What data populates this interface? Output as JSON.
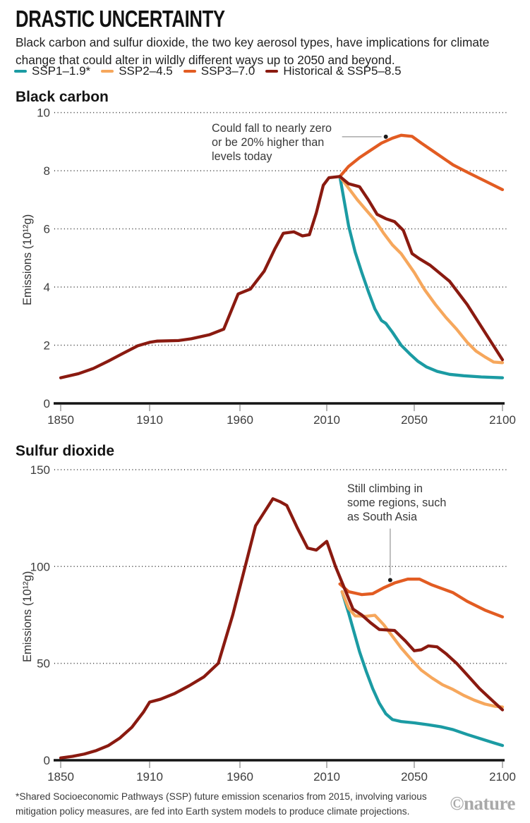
{
  "header": {
    "title": "DRASTIC UNCERTAINTY",
    "subtitle": "Black carbon and sulfur dioxide, the two key aerosol types, have implications for climate change that could alter in wildly different ways up to 2050 and beyond."
  },
  "legend": {
    "items": [
      {
        "label": "SSP1–1.9*",
        "color": "#1B9BA3"
      },
      {
        "label": "SSP2–4.5",
        "color": "#F6A75C"
      },
      {
        "label": "SSP3–7.0",
        "color": "#E25C22"
      },
      {
        "label": "Historical & SSP5–8.5",
        "color": "#8A1A10"
      }
    ]
  },
  "footer": {
    "note": "*Shared Socioeconomic Pathways (SSP) future emission scenarios from 2015, involving various mitigation policy measures, are fed into Earth system models to produce climate projections.",
    "credit": "©nature"
  },
  "chart_data": [
    {
      "type": "line",
      "title": "Black carbon",
      "ylabel": "Emissions (10¹²g)",
      "xlabel": "",
      "xlim": [
        1850,
        2100
      ],
      "ylim": [
        0,
        10
      ],
      "yticks": [
        0,
        2,
        4,
        6,
        8,
        10
      ],
      "xticks": [
        1850,
        1910,
        1960,
        2010,
        2050,
        2100
      ],
      "grid": "dotted-horizontal",
      "legend_position": "top-shared",
      "annotation": {
        "text": "Could fall to nearly zero or be 20% higher than levels today",
        "target_year": 2037,
        "target_value": 9.17
      },
      "series": [
        {
          "name": "SSP1–1.9*",
          "color": "#1B9BA3",
          "points": [
            [
              2016,
              7.8
            ],
            [
              2020,
              6.1
            ],
            [
              2023,
              5.2
            ],
            [
              2026,
              4.5
            ],
            [
              2029,
              3.85
            ],
            [
              2032,
              3.25
            ],
            [
              2035,
              2.85
            ],
            [
              2037,
              2.75
            ],
            [
              2040,
              2.45
            ],
            [
              2044,
              2.0
            ],
            [
              2048,
              1.7
            ],
            [
              2052,
              1.45
            ],
            [
              2057,
              1.25
            ],
            [
              2063,
              1.1
            ],
            [
              2070,
              1.0
            ],
            [
              2078,
              0.95
            ],
            [
              2088,
              0.91
            ],
            [
              2100,
              0.88
            ]
          ]
        },
        {
          "name": "SSP2–4.5",
          "color": "#F6A75C",
          "points": [
            [
              2016,
              7.8
            ],
            [
              2020,
              7.4
            ],
            [
              2024,
              7.0
            ],
            [
              2028,
              6.65
            ],
            [
              2032,
              6.3
            ],
            [
              2036,
              5.85
            ],
            [
              2040,
              5.45
            ],
            [
              2044,
              5.15
            ],
            [
              2050,
              4.5
            ],
            [
              2056,
              3.9
            ],
            [
              2062,
              3.4
            ],
            [
              2068,
              2.95
            ],
            [
              2074,
              2.55
            ],
            [
              2080,
              2.1
            ],
            [
              2085,
              1.8
            ],
            [
              2090,
              1.6
            ],
            [
              2095,
              1.42
            ],
            [
              2100,
              1.4
            ]
          ]
        },
        {
          "name": "SSP3–7.0",
          "color": "#E25C22",
          "points": [
            [
              2016,
              7.8
            ],
            [
              2020,
              8.15
            ],
            [
              2025,
              8.45
            ],
            [
              2030,
              8.7
            ],
            [
              2035,
              8.95
            ],
            [
              2040,
              9.12
            ],
            [
              2044,
              9.22
            ],
            [
              2049,
              9.18
            ],
            [
              2054,
              8.95
            ],
            [
              2060,
              8.7
            ],
            [
              2066,
              8.45
            ],
            [
              2072,
              8.2
            ],
            [
              2080,
              7.95
            ],
            [
              2090,
              7.65
            ],
            [
              2100,
              7.35
            ]
          ]
        },
        {
          "name": "Historical & SSP5–8.5",
          "color": "#8A1A10",
          "points": [
            [
              1850,
              0.88
            ],
            [
              1862,
              1.02
            ],
            [
              1872,
              1.2
            ],
            [
              1882,
              1.45
            ],
            [
              1892,
              1.72
            ],
            [
              1902,
              1.98
            ],
            [
              1910,
              2.1
            ],
            [
              1914,
              2.14
            ],
            [
              1926,
              2.16
            ],
            [
              1933,
              2.22
            ],
            [
              1943,
              2.36
            ],
            [
              1951,
              2.55
            ],
            [
              1959,
              3.76
            ],
            [
              1966,
              3.93
            ],
            [
              1974,
              4.55
            ],
            [
              1980,
              5.3
            ],
            [
              1985,
              5.85
            ],
            [
              1991,
              5.9
            ],
            [
              1996,
              5.76
            ],
            [
              2000,
              5.8
            ],
            [
              2004,
              6.55
            ],
            [
              2008,
              7.5
            ],
            [
              2011,
              7.76
            ],
            [
              2016,
              7.8
            ],
            [
              2020,
              7.55
            ],
            [
              2025,
              7.45
            ],
            [
              2029,
              7.0
            ],
            [
              2033,
              6.5
            ],
            [
              2037,
              6.35
            ],
            [
              2041,
              6.25
            ],
            [
              2045,
              5.95
            ],
            [
              2049,
              5.15
            ],
            [
              2053,
              4.97
            ],
            [
              2059,
              4.75
            ],
            [
              2065,
              4.45
            ],
            [
              2070,
              4.2
            ],
            [
              2080,
              3.4
            ],
            [
              2090,
              2.45
            ],
            [
              2100,
              1.5
            ]
          ]
        }
      ]
    },
    {
      "type": "line",
      "title": "Sulfur dioxide",
      "ylabel": "Emissions (10¹²g)",
      "xlabel": "",
      "xlim": [
        1850,
        2100
      ],
      "ylim": [
        0,
        150
      ],
      "yticks": [
        0,
        50,
        100,
        150
      ],
      "xticks": [
        1850,
        1910,
        1960,
        2010,
        2050,
        2100
      ],
      "grid": "dotted-horizontal",
      "legend_position": "top-shared",
      "annotation": {
        "text": "Still climbing in some regions, such as South Asia",
        "target_year": 2039,
        "target_value": 93
      },
      "series": [
        {
          "name": "SSP1–1.9*",
          "color": "#1B9BA3",
          "points": [
            [
              2017,
              87
            ],
            [
              2020,
              76
            ],
            [
              2022,
              68
            ],
            [
              2025,
              56
            ],
            [
              2028,
              46
            ],
            [
              2031,
              37
            ],
            [
              2034,
              29.5
            ],
            [
              2037,
              24
            ],
            [
              2040,
              21
            ],
            [
              2044,
              20
            ],
            [
              2050,
              19.3
            ],
            [
              2058,
              18.3
            ],
            [
              2065,
              17.3
            ],
            [
              2072,
              15.8
            ],
            [
              2080,
              13.3
            ],
            [
              2088,
              11
            ],
            [
              2095,
              9
            ],
            [
              2100,
              7.6
            ]
          ]
        },
        {
          "name": "SSP2–4.5",
          "color": "#F6A75C",
          "points": [
            [
              2017,
              87
            ],
            [
              2020,
              78.5
            ],
            [
              2023,
              74.5
            ],
            [
              2028,
              74.3
            ],
            [
              2032,
              74.8
            ],
            [
              2036,
              70
            ],
            [
              2040,
              64
            ],
            [
              2044,
              58
            ],
            [
              2049,
              51.5
            ],
            [
              2054,
              46.5
            ],
            [
              2060,
              42.5
            ],
            [
              2066,
              39
            ],
            [
              2072,
              36.5
            ],
            [
              2078,
              33.5
            ],
            [
              2084,
              31
            ],
            [
              2090,
              29
            ],
            [
              2096,
              27.8
            ],
            [
              2100,
              27.5
            ]
          ]
        },
        {
          "name": "SSP3–7.0",
          "color": "#E25C22",
          "points": [
            [
              2016,
              91
            ],
            [
              2020,
              87
            ],
            [
              2026,
              85.5
            ],
            [
              2031,
              86
            ],
            [
              2036,
              89
            ],
            [
              2041,
              91.5
            ],
            [
              2047,
              93.5
            ],
            [
              2053,
              93.5
            ],
            [
              2060,
              90.5
            ],
            [
              2066,
              88.5
            ],
            [
              2072,
              86.5
            ],
            [
              2080,
              82
            ],
            [
              2090,
              77.5
            ],
            [
              2100,
              74
            ]
          ]
        },
        {
          "name": "Historical & SSP5–8.5",
          "color": "#8A1A10",
          "points": [
            [
              1850,
              1.2
            ],
            [
              1858,
              2
            ],
            [
              1866,
              3.2
            ],
            [
              1874,
              5
            ],
            [
              1882,
              7.5
            ],
            [
              1890,
              11.5
            ],
            [
              1898,
              17
            ],
            [
              1906,
              25
            ],
            [
              1910,
              30
            ],
            [
              1916,
              31.5
            ],
            [
              1924,
              34.5
            ],
            [
              1932,
              38.5
            ],
            [
              1940,
              43
            ],
            [
              1948,
              50
            ],
            [
              1956,
              75
            ],
            [
              1963,
              100
            ],
            [
              1969,
              121
            ],
            [
              1974,
              128
            ],
            [
              1979,
              135
            ],
            [
              1983,
              133.5
            ],
            [
              1987,
              131.5
            ],
            [
              1993,
              120
            ],
            [
              1999,
              109.5
            ],
            [
              2004,
              108.5
            ],
            [
              2010,
              113
            ],
            [
              2014,
              100
            ],
            [
              2018,
              89
            ],
            [
              2022,
              78
            ],
            [
              2026,
              75
            ],
            [
              2030,
              71
            ],
            [
              2034,
              67.5
            ],
            [
              2041,
              67
            ],
            [
              2046,
              61.5
            ],
            [
              2050,
              56.5
            ],
            [
              2054,
              57
            ],
            [
              2058,
              59
            ],
            [
              2063,
              58.5
            ],
            [
              2068,
              55
            ],
            [
              2074,
              50
            ],
            [
              2080,
              44
            ],
            [
              2087,
              37
            ],
            [
              2094,
              31
            ],
            [
              2100,
              26
            ]
          ]
        }
      ]
    }
  ]
}
